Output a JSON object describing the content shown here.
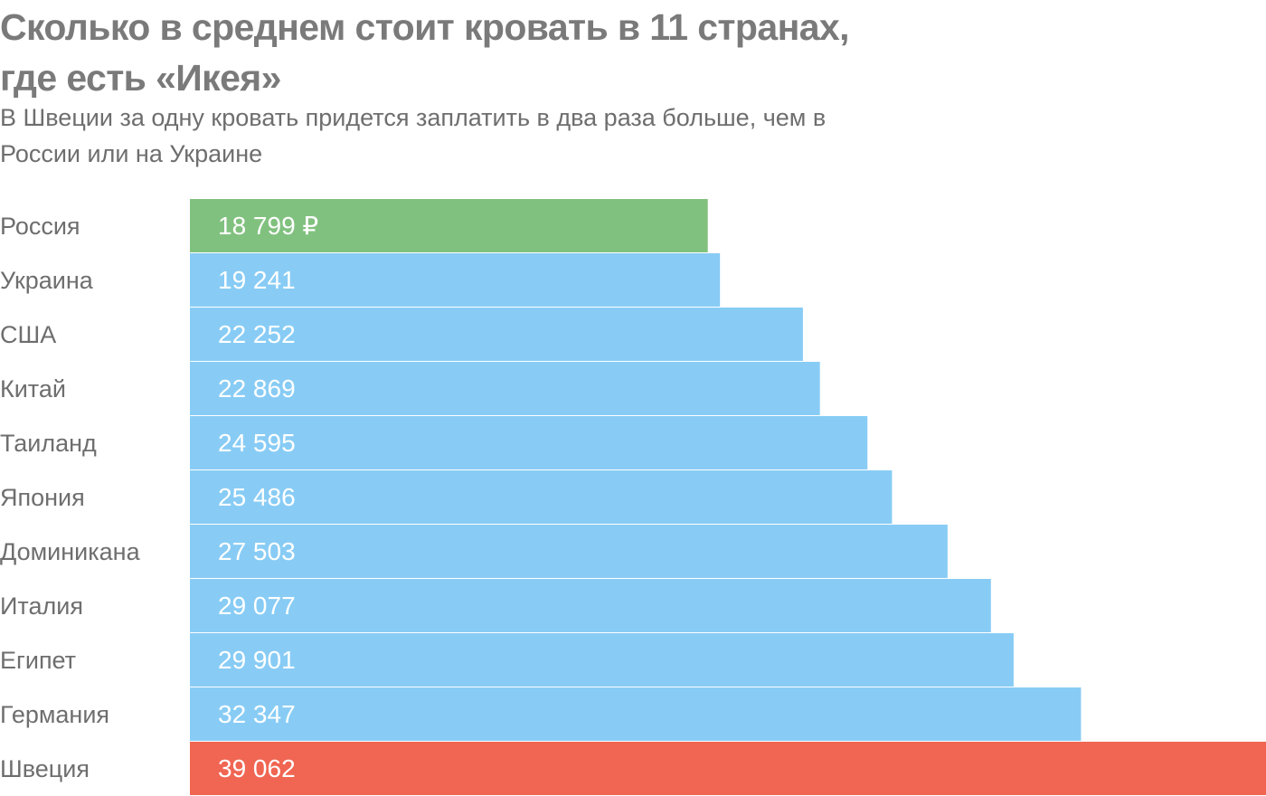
{
  "title": "Сколько в среднем стоит кровать в 11 странах, где есть «Икея»",
  "subtitle": "В Швеции за одну кровать придется заплатить в два раза больше, чем в России или на Украине",
  "colors": {
    "highlight_low": "#81c17f",
    "default": "#88ccf5",
    "highlight_high": "#f06653",
    "category_text": "#6e6e6e",
    "value_text": "#ffffff"
  },
  "chart_data": {
    "type": "bar",
    "orientation": "horizontal",
    "categories": [
      "Россия",
      "Украина",
      "США",
      "Китай",
      "Таиланд",
      "Япония",
      "Доминикана",
      "Италия",
      "Египет",
      "Германия",
      "Швеция"
    ],
    "values": [
      18799,
      19241,
      22252,
      22869,
      24595,
      25486,
      27503,
      29077,
      29901,
      32347,
      39062
    ],
    "value_labels": [
      "18 799 ₽",
      "19 241",
      "22 252",
      "22 869",
      "24 595",
      "25 486",
      "27 503",
      "29 077",
      "29 901",
      "32 347",
      "39 062"
    ],
    "bar_colors": [
      "highlight_low",
      "default",
      "default",
      "default",
      "default",
      "default",
      "default",
      "default",
      "default",
      "default",
      "highlight_high"
    ],
    "xlim": [
      0,
      39062
    ]
  }
}
